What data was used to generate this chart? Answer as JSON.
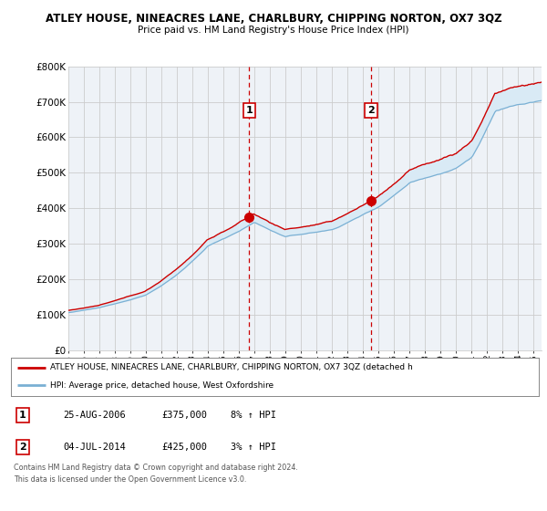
{
  "title": "ATLEY HOUSE, NINEACRES LANE, CHARLBURY, CHIPPING NORTON, OX7 3QZ",
  "subtitle": "Price paid vs. HM Land Registry's House Price Index (HPI)",
  "xlim_start": 1995.0,
  "xlim_end": 2025.5,
  "ylim": [
    0,
    800000
  ],
  "yticks": [
    0,
    100000,
    200000,
    300000,
    400000,
    500000,
    600000,
    700000,
    800000
  ],
  "ytick_labels": [
    "£0",
    "£100K",
    "£200K",
    "£300K",
    "£400K",
    "£500K",
    "£600K",
    "£700K",
    "£800K"
  ],
  "xtick_years": [
    1995,
    1996,
    1997,
    1998,
    1999,
    2000,
    2001,
    2002,
    2003,
    2004,
    2005,
    2006,
    2007,
    2008,
    2009,
    2010,
    2011,
    2012,
    2013,
    2014,
    2015,
    2016,
    2017,
    2018,
    2019,
    2020,
    2021,
    2022,
    2023,
    2024,
    2025
  ],
  "sale1_x": 2006.646,
  "sale1_y": 375000,
  "sale2_x": 2014.505,
  "sale2_y": 425000,
  "line_color_red": "#cc0000",
  "line_color_blue": "#7ab0d4",
  "fill_color": "#d9eaf5",
  "grid_color": "#cccccc",
  "bg_color": "#ffffff",
  "plot_bg_color": "#eef2f7",
  "legend_line1": "ATLEY HOUSE, NINEACRES LANE, CHARLBURY, CHIPPING NORTON, OX7 3QZ (detached h",
  "legend_line2": "HPI: Average price, detached house, West Oxfordshire",
  "sale1_date": "25-AUG-2006",
  "sale1_price": "£375,000",
  "sale1_hpi": "8% ↑ HPI",
  "sale2_date": "04-JUL-2014",
  "sale2_price": "£425,000",
  "sale2_hpi": "3% ↑ HPI",
  "footer1": "Contains HM Land Registry data © Crown copyright and database right 2024.",
  "footer2": "This data is licensed under the Open Government Licence v3.0."
}
